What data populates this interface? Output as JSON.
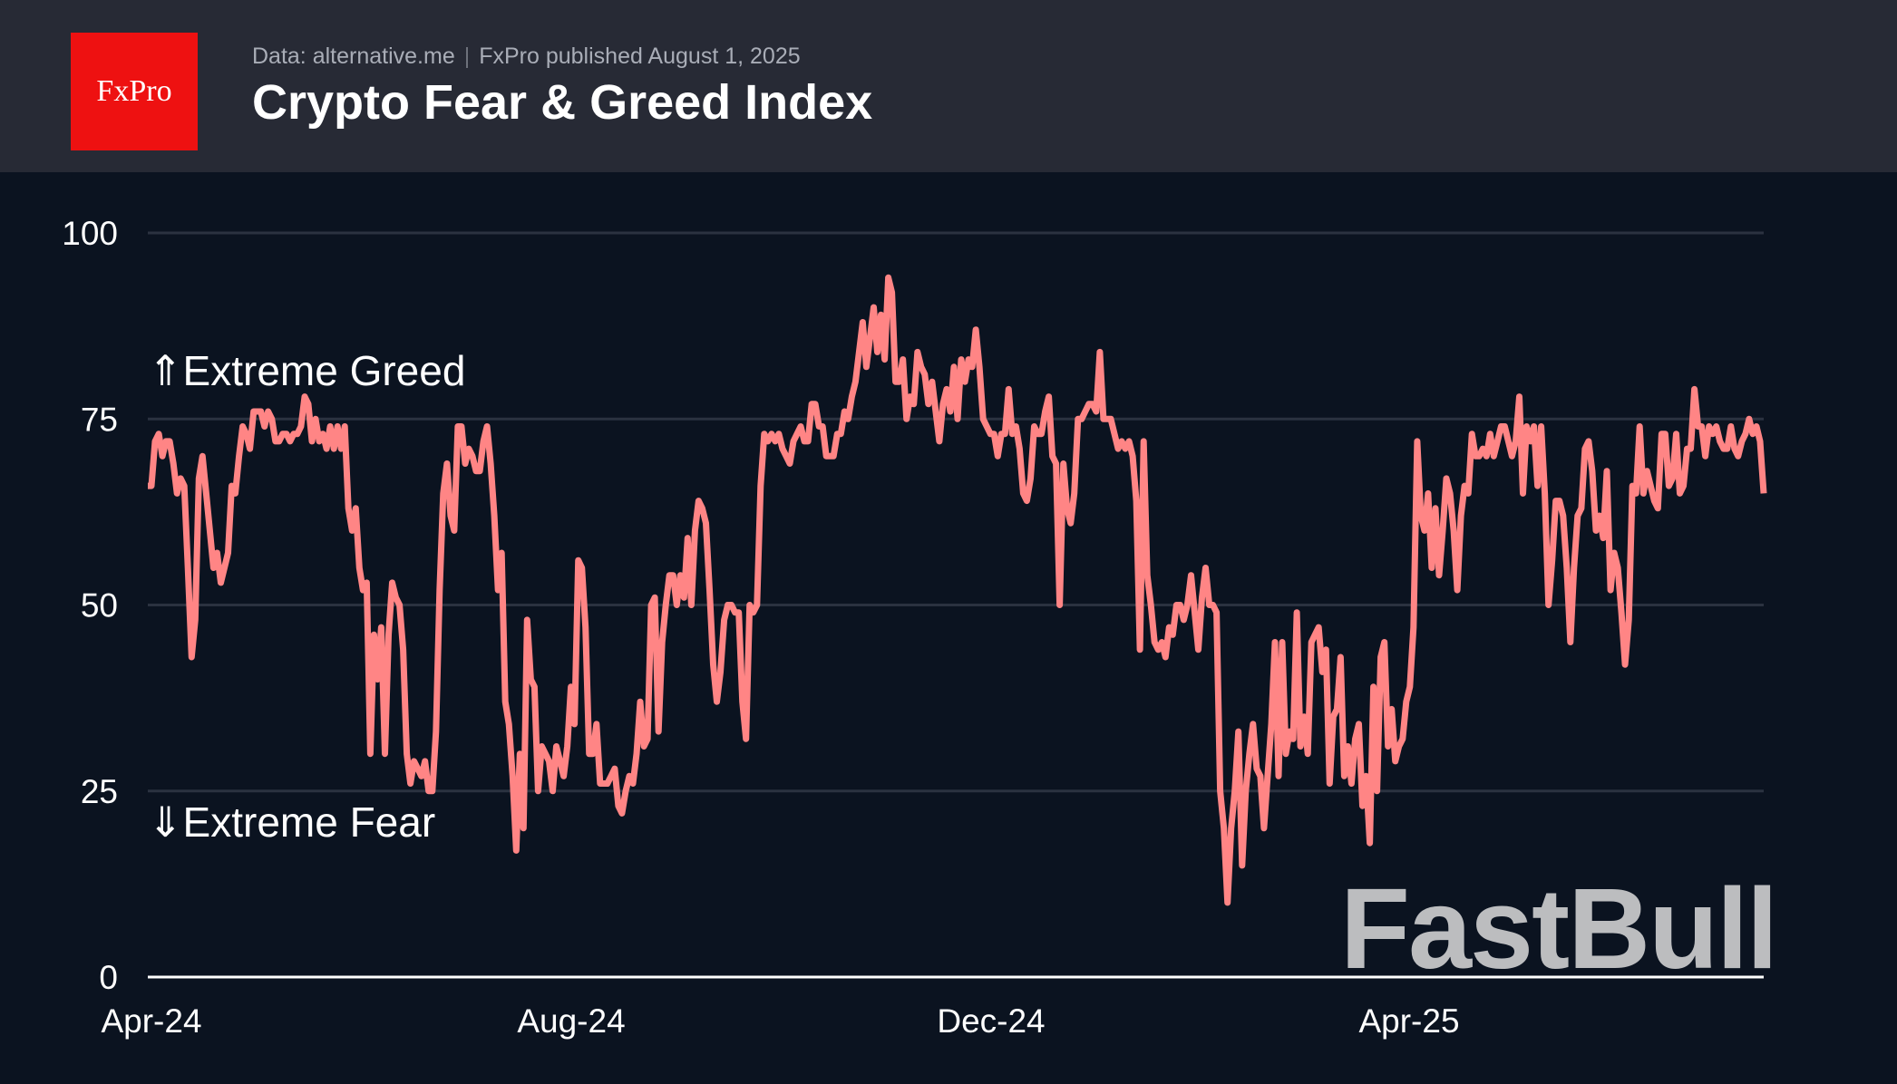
{
  "header": {
    "logo_text": "FxPro",
    "source": "Data: alternative.me",
    "published": "FxPro published August 1, 2025",
    "title": "Crypto Fear & Greed Index"
  },
  "watermark": "FastBull",
  "colors": {
    "header_bg": "#272a35",
    "plot_bg": "#0b1320",
    "line": "#ff8585",
    "logo": "#ee1111",
    "grid": "#2b3240"
  },
  "chart_data": {
    "type": "line",
    "title": "Crypto Fear & Greed Index",
    "xlabel": "",
    "ylabel": "",
    "ylim": [
      0,
      100
    ],
    "yticks": [
      0,
      25,
      50,
      75,
      100
    ],
    "xtick_labels": [
      "Apr-24",
      "Aug-24",
      "Dec-24",
      "Apr-25"
    ],
    "x_range": [
      "2024-04",
      "2025-08"
    ],
    "grid": "horizontal",
    "annotations": {
      "greed": "⇑Extreme Greed",
      "fear": "⇓Extreme Fear"
    },
    "series": [
      {
        "values": [
          66,
          66,
          72,
          73,
          70,
          72,
          72,
          69,
          65,
          67,
          66,
          55,
          43,
          48,
          67,
          70,
          65,
          60,
          55,
          57,
          53,
          55,
          57,
          66,
          65,
          70,
          74,
          73,
          71,
          76,
          76,
          76,
          74,
          76,
          75,
          72,
          72,
          73,
          73,
          72,
          73,
          73,
          74,
          78,
          77,
          72,
          75,
          72,
          73,
          71,
          74,
          71,
          74,
          71,
          74,
          63,
          60,
          63,
          55,
          52,
          53,
          30,
          46,
          40,
          47,
          30,
          46,
          53,
          51,
          50,
          44,
          30,
          26,
          29,
          28,
          27,
          29,
          25,
          25,
          33,
          52,
          65,
          69,
          62,
          60,
          74,
          74,
          69,
          71,
          70,
          68,
          68,
          72,
          74,
          69,
          62,
          52,
          57,
          37,
          34,
          27,
          17,
          30,
          20,
          48,
          40,
          39,
          25,
          31,
          30,
          29,
          25,
          31,
          29,
          27,
          31,
          39,
          34,
          56,
          55,
          47,
          30,
          30,
          34,
          26,
          26,
          26,
          27,
          28,
          23,
          22,
          25,
          27,
          26,
          30,
          37,
          31,
          32,
          50,
          51,
          33,
          45,
          50,
          54,
          54,
          50,
          54,
          51,
          59,
          50,
          60,
          64,
          63,
          61,
          52,
          42,
          37,
          41,
          48,
          50,
          50,
          49,
          49,
          37,
          32,
          50,
          49,
          50,
          66,
          73,
          72,
          73,
          72,
          73,
          71,
          70,
          69,
          72,
          73,
          74,
          72,
          72,
          77,
          77,
          74,
          74,
          70,
          70,
          70,
          73,
          73,
          76,
          75,
          78,
          80,
          84,
          88,
          82,
          86,
          90,
          84,
          89,
          83,
          94,
          92,
          80,
          80,
          83,
          75,
          78,
          77,
          84,
          82,
          81,
          77,
          80,
          76,
          72,
          77,
          79,
          76,
          82,
          75,
          83,
          80,
          83,
          82,
          87,
          82,
          75,
          74,
          73,
          73,
          70,
          73,
          73,
          79,
          73,
          74,
          71,
          65,
          64,
          67,
          74,
          73,
          73,
          76,
          78,
          70,
          69,
          50,
          69,
          63,
          61,
          65,
          75,
          75,
          76,
          77,
          77,
          76,
          84,
          75,
          75,
          75,
          73,
          71,
          72,
          71,
          72,
          70,
          64,
          44,
          72,
          54,
          50,
          45,
          44,
          45,
          43,
          47,
          46,
          50,
          50,
          48,
          50,
          54,
          49,
          44,
          51,
          55,
          50,
          50,
          49,
          25,
          20,
          10,
          20,
          25,
          33,
          15,
          25,
          30,
          34,
          28,
          27,
          20,
          27,
          34,
          45,
          27,
          45,
          30,
          33,
          32,
          49,
          31,
          35,
          30,
          45,
          46,
          47,
          41,
          44,
          26,
          35,
          36,
          43,
          27,
          31,
          26,
          32,
          34,
          23,
          27,
          18,
          39,
          25,
          43,
          45,
          31,
          36,
          29,
          31,
          32,
          37,
          39,
          47,
          72,
          62,
          60,
          65,
          55,
          63,
          54,
          60,
          67,
          65,
          60,
          52,
          62,
          66,
          65,
          73,
          70,
          70,
          71,
          70,
          73,
          70,
          72,
          74,
          74,
          72,
          70,
          72,
          78,
          65,
          74,
          72,
          74,
          66,
          74,
          65,
          50,
          56,
          64,
          64,
          62,
          55,
          45,
          55,
          62,
          63,
          71,
          72,
          68,
          60,
          62,
          59,
          68,
          52,
          57,
          55,
          49,
          42,
          48,
          66,
          65,
          74,
          65,
          68,
          66,
          64,
          63,
          73,
          73,
          66,
          67,
          73,
          65,
          66,
          71,
          71,
          79,
          74,
          74,
          70,
          74,
          73,
          74,
          72,
          71,
          71,
          74,
          71,
          70,
          72,
          73,
          75,
          73,
          74,
          72,
          65
        ]
      }
    ]
  }
}
